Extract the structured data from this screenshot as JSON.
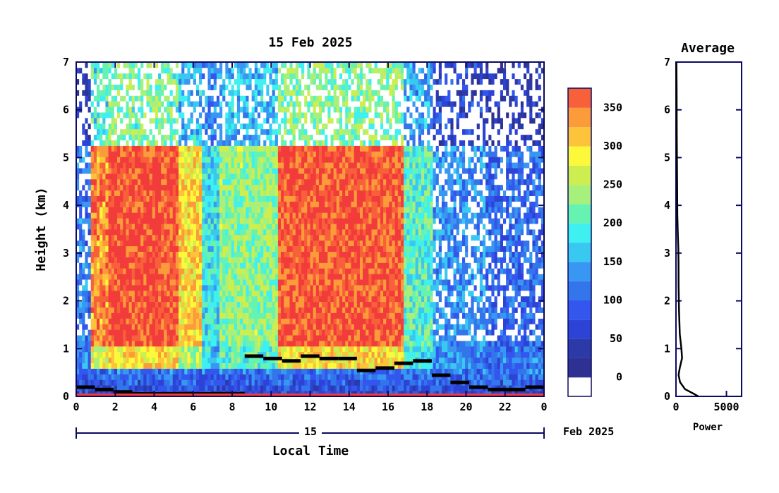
{
  "chart_data": [
    {
      "type": "heatmap",
      "title": "15 Feb 2025",
      "xlabel": "Local Time",
      "ylabel": "Height (km)",
      "xlim": [
        0,
        24
      ],
      "ylim": [
        0,
        7
      ],
      "x_ticks": [
        "0",
        "2",
        "4",
        "6",
        "8",
        "10",
        "12",
        "14",
        "16",
        "18",
        "20",
        "22",
        "0"
      ],
      "y_ticks": [
        "0",
        "1",
        "2",
        "3",
        "4",
        "5",
        "6",
        "7"
      ],
      "date_axis": {
        "day_label": "15",
        "month_year_label": "Feb 2025"
      },
      "colorbar": {
        "tick_labels": [
          "0",
          "50",
          "100",
          "150",
          "200",
          "250",
          "300",
          "350"
        ],
        "range": [
          -25,
          375
        ],
        "bins": [
          {
            "value": -12,
            "color": "#ffffff"
          },
          {
            "value": 12,
            "color": "#2e3192"
          },
          {
            "value": 37,
            "color": "#2b3aa6"
          },
          {
            "value": 62,
            "color": "#2c43d6"
          },
          {
            "value": 87,
            "color": "#3256ee"
          },
          {
            "value": 112,
            "color": "#3375ea"
          },
          {
            "value": 137,
            "color": "#3897f2"
          },
          {
            "value": 162,
            "color": "#39c8f0"
          },
          {
            "value": 187,
            "color": "#3ef0f0"
          },
          {
            "value": 212,
            "color": "#66f2b0"
          },
          {
            "value": 237,
            "color": "#a8f07c"
          },
          {
            "value": 262,
            "color": "#cdee4e"
          },
          {
            "value": 287,
            "color": "#fcf93a"
          },
          {
            "value": 312,
            "color": "#fdc33a"
          },
          {
            "value": 337,
            "color": "#fb9b3a"
          },
          {
            "value": 362,
            "color": "#f8603a"
          },
          {
            "value": 387,
            "color": "#f23b3b"
          }
        ]
      },
      "columns": [
        {
          "start": 0.0,
          "end": 0.8,
          "high": 60,
          "mid": 110
        },
        {
          "start": 0.8,
          "end": 1.7,
          "high": 320,
          "mid": 340
        },
        {
          "start": 1.7,
          "end": 2.6,
          "high": 380,
          "mid": 380
        },
        {
          "start": 2.6,
          "end": 3.5,
          "high": 360,
          "mid": 370
        },
        {
          "start": 3.5,
          "end": 4.2,
          "high": 380,
          "mid": 380
        },
        {
          "start": 4.2,
          "end": 5.2,
          "high": 360,
          "mid": 370
        },
        {
          "start": 5.2,
          "end": 6.4,
          "high": 260,
          "mid": 300
        },
        {
          "start": 6.4,
          "end": 7.4,
          "high": 200,
          "mid": 180
        },
        {
          "start": 7.4,
          "end": 10.4,
          "high": 260,
          "mid": 230
        },
        {
          "start": 10.4,
          "end": 16.8,
          "high": 380,
          "mid": 370
        },
        {
          "start": 16.8,
          "end": 18.3,
          "high": 230,
          "mid": 200
        },
        {
          "start": 18.3,
          "end": 21.0,
          "high": 110,
          "mid": 130
        },
        {
          "start": 21.0,
          "end": 24.0,
          "high": 70,
          "mid": 100
        }
      ],
      "cloud_base_km": [
        0.2,
        0.15,
        0.1,
        0.06,
        0.06,
        0.06,
        0.06,
        0.06,
        0.06,
        0.85,
        0.8,
        0.75,
        0.85,
        0.8,
        0.8,
        0.55,
        0.6,
        0.7,
        0.75,
        0.45,
        0.3,
        0.2,
        0.15,
        0.15,
        0.2
      ]
    },
    {
      "type": "line",
      "title": "Average",
      "xlabel": "Power",
      "xlim": [
        0,
        6500
      ],
      "ylim": [
        0,
        7
      ],
      "x_ticks": [
        "0",
        "5000"
      ],
      "y_ticks": [
        "0",
        "1",
        "2",
        "3",
        "4",
        "5",
        "6",
        "7"
      ],
      "x": [
        2200,
        1800,
        900,
        400,
        260,
        380,
        600,
        540,
        380,
        300,
        260,
        250,
        230,
        180,
        130,
        110,
        80,
        60,
        40
      ],
      "y": [
        0.0,
        0.05,
        0.15,
        0.3,
        0.45,
        0.6,
        0.8,
        1.0,
        1.3,
        1.8,
        2.3,
        2.8,
        3.1,
        3.4,
        3.8,
        4.5,
        5.5,
        6.5,
        7.0
      ]
    }
  ]
}
